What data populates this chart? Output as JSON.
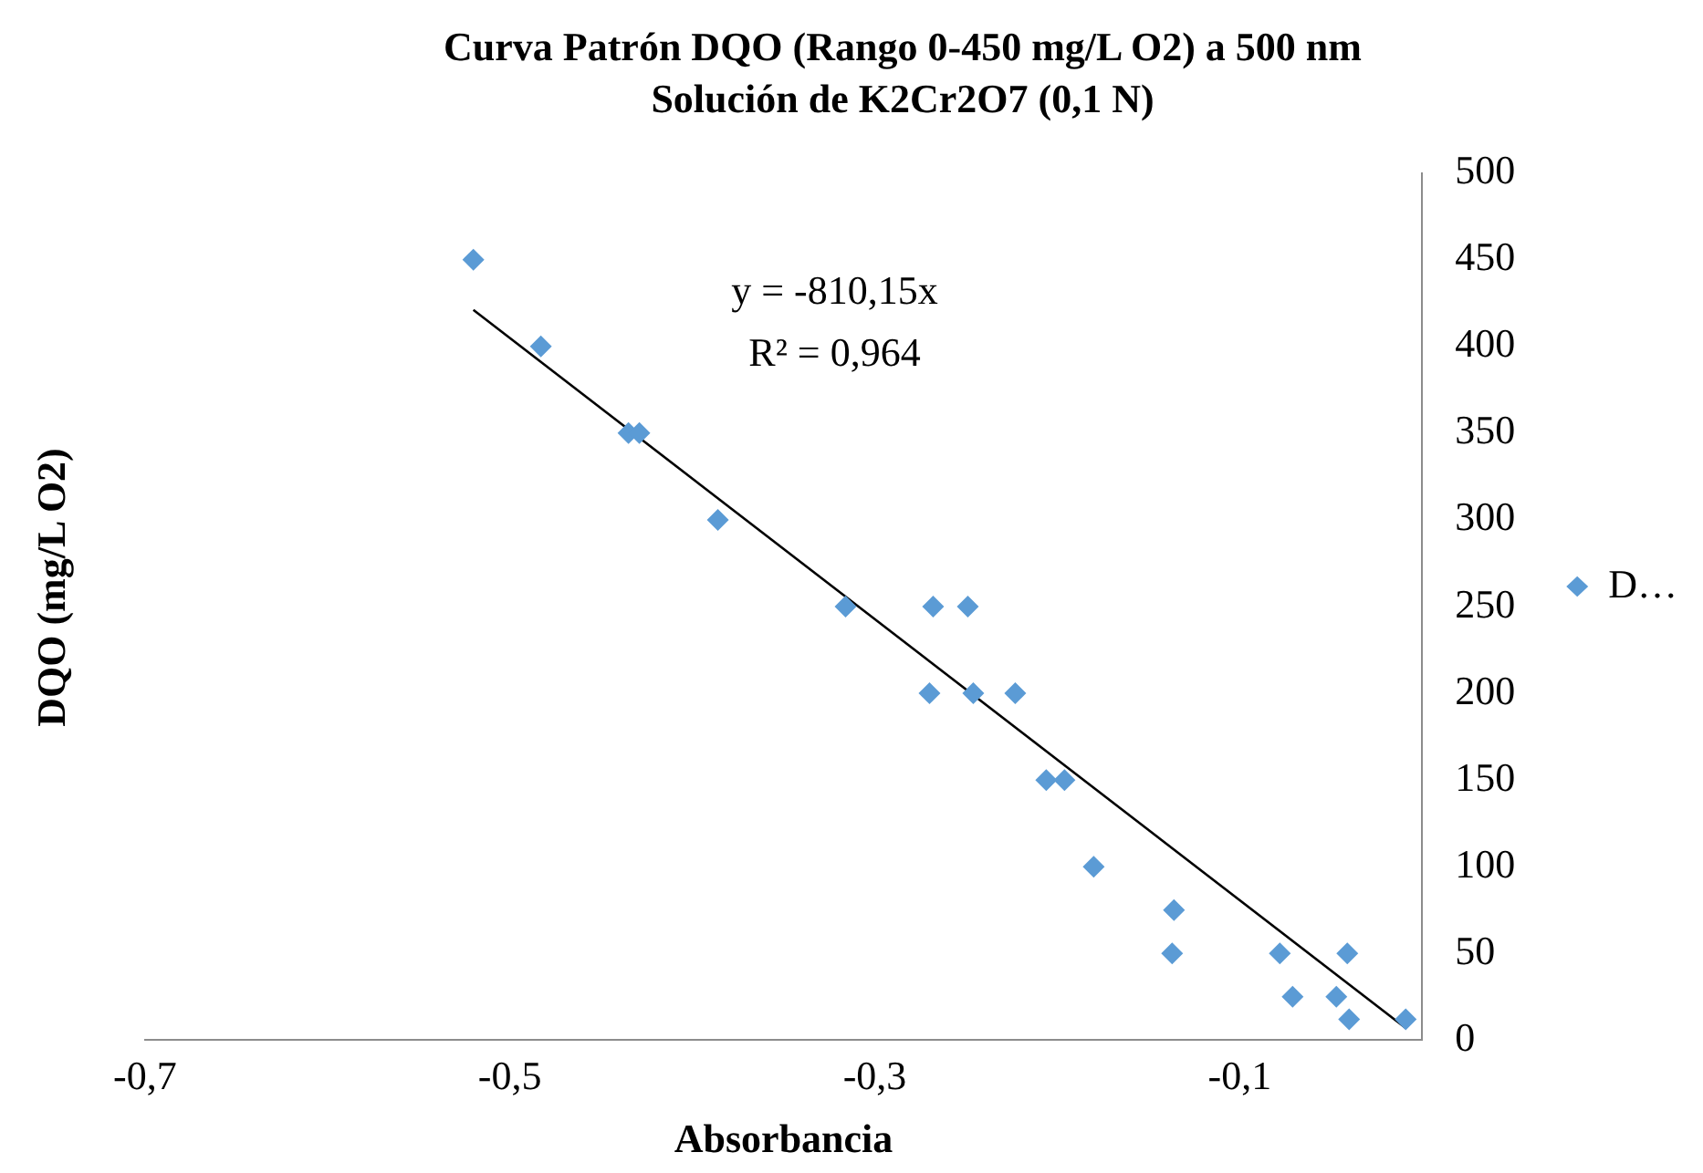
{
  "chart_data": {
    "type": "scatter",
    "title": "Curva Patrón DQO (Rango 0-450 mg/L O2) a 500 nm",
    "subtitle": "Solución de K2Cr2O7 (0,1 N)",
    "xlabel": "Absorbancia",
    "ylabel": "DQO (mg/L O2)",
    "annotations": [
      "y = -810,15x",
      "R² = 0,964"
    ],
    "series": [
      {
        "name": "D…",
        "color": "#5b9bd5",
        "x": [
          -0.52,
          -0.483,
          -0.435,
          -0.429,
          -0.386,
          -0.316,
          -0.268,
          -0.249,
          -0.27,
          -0.246,
          -0.223,
          -0.206,
          -0.196,
          -0.18,
          -0.136,
          -0.137,
          -0.078,
          -0.041,
          -0.071,
          -0.047,
          -0.04,
          -0.009
        ],
        "values": [
          450,
          400,
          350,
          350,
          300,
          250,
          250,
          250,
          200,
          200,
          200,
          150,
          150,
          100,
          75,
          50,
          50,
          50,
          25,
          25,
          12,
          12
        ]
      },
      {
        "type": "line",
        "color": "#000000",
        "x": [
          -0.52,
          -0.009
        ],
        "values": [
          421,
          7
        ],
        "marker": "none"
      }
    ],
    "xlim": [
      -0.7,
      0
    ],
    "xticks": [
      {
        "value": -0.7,
        "label": "-0,7"
      },
      {
        "value": -0.5,
        "label": "-0,5"
      },
      {
        "value": -0.3,
        "label": "-0,3"
      },
      {
        "value": -0.1,
        "label": "-0,1"
      }
    ],
    "ylim": [
      0,
      500
    ],
    "yticks": [
      0,
      50,
      100,
      150,
      200,
      250,
      300,
      350,
      400,
      450,
      500
    ],
    "grid": false,
    "legend": "right",
    "marker": "diamond"
  }
}
